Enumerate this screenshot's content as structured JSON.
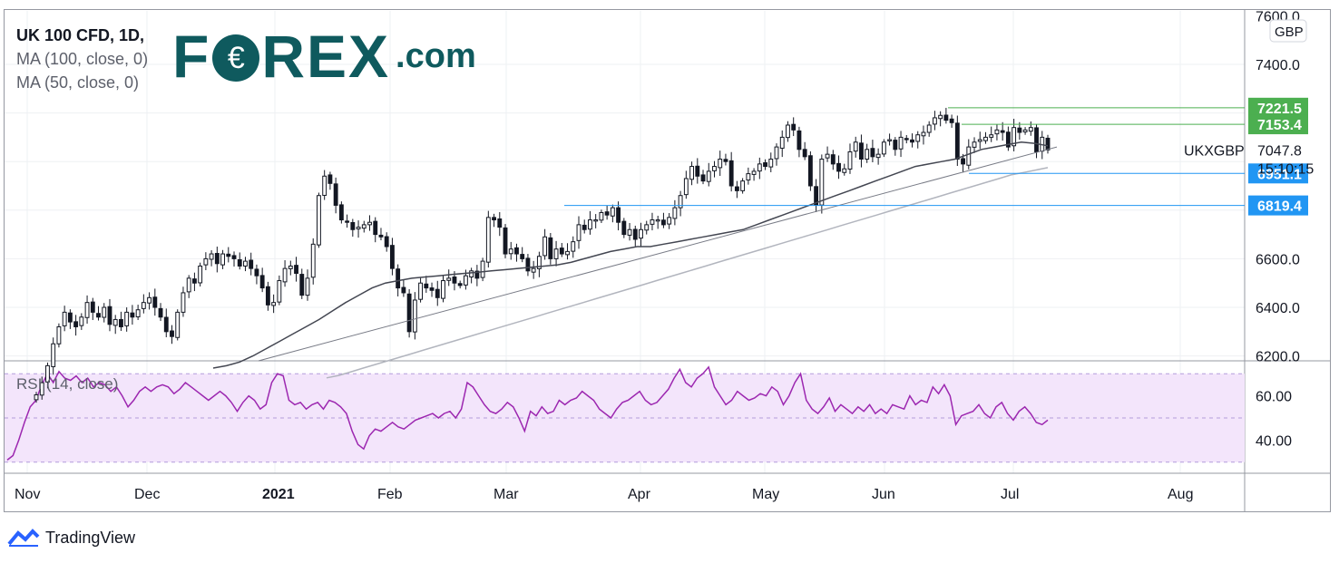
{
  "legend": {
    "symbol": "UK 100 CFD, 1D,",
    "ma1": "MA (100, close, 0)",
    "ma2": "MA (50, close, 0)"
  },
  "logo": {
    "left": "F",
    "o": "€",
    "right": "REX",
    "suffix": ".com"
  },
  "rsi": {
    "label": "RSI (14, close)"
  },
  "footer": {
    "brand": "TradingView"
  },
  "currency": "GBP",
  "colors": {
    "up": "#ffffff",
    "down": "#131722",
    "rsi": "#9c27b0",
    "rsi_band": "#f3e5fb",
    "green": "#4caf50",
    "blue": "#2196f3"
  },
  "chart_data": {
    "type": "candlestick",
    "title": "UK 100 CFD, 1D",
    "currency": "GBP",
    "x_tick_labels": [
      "Nov",
      "Dec",
      "2021",
      "Feb",
      "Mar",
      "Apr",
      "May",
      "Jun",
      "Jul",
      "Aug"
    ],
    "y_tick_labels": [
      "7600.0",
      "7400.0",
      "6600.0",
      "6400.0",
      "6200.0"
    ],
    "ylim": [
      6180,
      7620
    ],
    "price_labels": [
      {
        "text": "7221.5",
        "color": "#4caf50",
        "value": 7221.5
      },
      {
        "text": "7153.4",
        "color": "#4caf50",
        "value": 7153.4
      },
      {
        "text": "6951.1",
        "color": "#2196f3",
        "value": 6951.1
      },
      {
        "text": "6819.4",
        "color": "#2196f3",
        "value": 6819.4
      }
    ],
    "last_price": {
      "symbol": "UKXGBP",
      "value": "7047.8",
      "countdown": "15:10:15"
    },
    "horizontal_levels": [
      7221.5,
      7153.4,
      6951.1,
      6819.4
    ],
    "closes": [
      6040,
      6090,
      6160,
      6250,
      6320,
      6380,
      6340,
      6320,
      6360,
      6420,
      6380,
      6360,
      6400,
      6330,
      6350,
      6320,
      6380,
      6360,
      6390,
      6420,
      6440,
      6400,
      6360,
      6300,
      6280,
      6380,
      6460,
      6520,
      6500,
      6570,
      6600,
      6620,
      6580,
      6620,
      6610,
      6600,
      6570,
      6590,
      6560,
      6530,
      6480,
      6410,
      6420,
      6510,
      6560,
      6570,
      6540,
      6450,
      6520,
      6660,
      6860,
      6940,
      6910,
      6820,
      6760,
      6750,
      6720,
      6730,
      6740,
      6750,
      6700,
      6690,
      6650,
      6560,
      6480,
      6460,
      6300,
      6430,
      6500,
      6480,
      6470,
      6440,
      6510,
      6520,
      6500,
      6490,
      6530,
      6550,
      6520,
      6590,
      6770,
      6760,
      6730,
      6620,
      6640,
      6620,
      6600,
      6550,
      6560,
      6610,
      6690,
      6600,
      6640,
      6620,
      6630,
      6670,
      6740,
      6720,
      6760,
      6760,
      6790,
      6780,
      6810,
      6750,
      6700,
      6720,
      6680,
      6720,
      6740,
      6760,
      6760,
      6740,
      6770,
      6810,
      6860,
      6930,
      6980,
      6940,
      6920,
      6960,
      6980,
      7010,
      7000,
      6900,
      6880,
      6920,
      6950,
      6960,
      6990,
      6980,
      7010,
      7060,
      7100,
      7150,
      7130,
      7050,
      7020,
      6900,
      6820,
      7010,
      7030,
      6990,
      6960,
      6970,
      7040,
      7080,
      7010,
      7050,
      7020,
      7030,
      7080,
      7090,
      7050,
      7100,
      7090,
      7080,
      7110,
      7120,
      7150,
      7180,
      7190,
      7170,
      7160,
      7010,
      6990,
      7060,
      7080,
      7090,
      7100,
      7110,
      7130,
      7120,
      7060,
      7140,
      7120,
      7130,
      7140,
      7040,
      7100,
      7047.8
    ],
    "ma50": [
      6150,
      6160,
      6175,
      6200,
      6230,
      6260,
      6290,
      6320,
      6350,
      6385,
      6420,
      6450,
      6480,
      6500,
      6510,
      6520,
      6525,
      6530,
      6535,
      6540,
      6545,
      6550,
      6555,
      6560,
      6565,
      6570,
      6575,
      6585,
      6600,
      6615,
      6630,
      6640,
      6650,
      6650,
      6660,
      6670,
      6680,
      6690,
      6700,
      6710,
      6720,
      6740,
      6760,
      6780,
      6800,
      6820,
      6840,
      6860,
      6880,
      6900,
      6920,
      6940,
      6960,
      6980,
      6990,
      7000,
      7010,
      7030,
      7050,
      7060,
      7070,
      7080,
      7075,
      7065
    ],
    "ma100": [
      6110,
      6120,
      6135,
      6150,
      6165,
      6180,
      6195,
      6210,
      6225,
      6240,
      6255,
      6270,
      6285,
      6300,
      6315,
      6330,
      6345,
      6360,
      6375,
      6390,
      6405,
      6420,
      6435,
      6450,
      6465,
      6480,
      6495,
      6510,
      6525,
      6540,
      6555,
      6570,
      6585,
      6600,
      6615,
      6630,
      6645,
      6660,
      6675,
      6690,
      6705,
      6720,
      6735,
      6750,
      6765,
      6780,
      6795,
      6810,
      6825,
      6840,
      6855,
      6870,
      6885,
      6900,
      6915,
      6930,
      6945,
      6955,
      6965,
      6975
    ],
    "trendline": {
      "from": 6180,
      "to": 7060
    },
    "rsi": {
      "ylim": [
        25,
        75
      ],
      "y_tick_labels": [
        "60.00",
        "40.00"
      ],
      "bands": [
        70,
        30
      ],
      "values": [
        31,
        33,
        40,
        48,
        55,
        58,
        65,
        70,
        66,
        71,
        68,
        67,
        69,
        66,
        68,
        64,
        66,
        65,
        62,
        64,
        60,
        55,
        58,
        62,
        64,
        62,
        64,
        65,
        64,
        61,
        63,
        66,
        64,
        62,
        60,
        58,
        60,
        62,
        60,
        57,
        53,
        57,
        60,
        58,
        54,
        56,
        66,
        70,
        69,
        58,
        56,
        57,
        54,
        56,
        57,
        54,
        58,
        57,
        55,
        52,
        44,
        38,
        36,
        42,
        45,
        44,
        46,
        48,
        46,
        45,
        47,
        49,
        50,
        51,
        52,
        50,
        52,
        53,
        50,
        54,
        66,
        64,
        60,
        56,
        53,
        52,
        54,
        57,
        55,
        50,
        44,
        53,
        51,
        55,
        52,
        53,
        58,
        56,
        58,
        59,
        62,
        60,
        58,
        54,
        52,
        50,
        54,
        57,
        58,
        60,
        62,
        58,
        56,
        57,
        60,
        63,
        68,
        72,
        66,
        64,
        68,
        70,
        73,
        64,
        60,
        56,
        58,
        62,
        60,
        58,
        59,
        61,
        60,
        64,
        62,
        56,
        60,
        66,
        70,
        58,
        54,
        52,
        55,
        59,
        53,
        56,
        54,
        52,
        55,
        53,
        56,
        52,
        54,
        52,
        56,
        55,
        54,
        60,
        56,
        58,
        57,
        64,
        61,
        65,
        60,
        47,
        51,
        52,
        53,
        56,
        52,
        50,
        55,
        57,
        52,
        49,
        53,
        55,
        52,
        48,
        47,
        49
      ]
    }
  }
}
